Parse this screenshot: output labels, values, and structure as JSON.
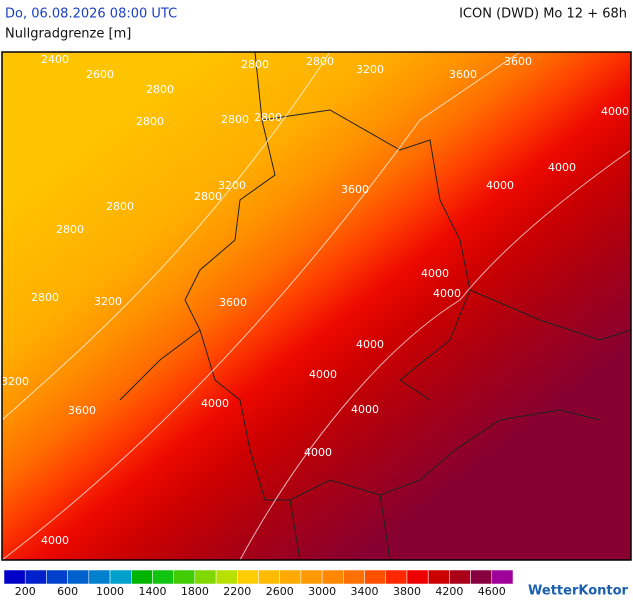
{
  "header": {
    "timestamp": "Do, 06.08.2026 08:00 UTC",
    "model": "ICON (DWD) Mo 12 + 68h",
    "title": "Nullgradgrenze [m]"
  },
  "contour_labels": [
    "2400",
    "2600",
    "2800",
    "2800",
    "2800",
    "2800",
    "3200",
    "3600",
    "3600",
    "4000",
    "4000",
    "2800",
    "2800",
    "3200",
    "2800",
    "2800",
    "3600",
    "4000",
    "2800",
    "4000",
    "4000",
    "2800",
    "3200",
    "3600",
    "4000",
    "3200",
    "4000",
    "3600",
    "4000",
    "4000",
    "4000",
    "4000"
  ],
  "colorbar": {
    "colors": [
      "#0000c8",
      "#0020cc",
      "#0040cc",
      "#0060cc",
      "#0080cc",
      "#00a0cc",
      "#00b400",
      "#10c410",
      "#40cc00",
      "#80d800",
      "#b8e000",
      "#ffcc00",
      "#ffbb00",
      "#ffaa00",
      "#ff9900",
      "#ff8800",
      "#ff7000",
      "#ff5000",
      "#ff2800",
      "#ee0000",
      "#cc0000",
      "#aa0018",
      "#880040",
      "#a0009a"
    ],
    "labels": [
      200,
      600,
      1000,
      1400,
      1800,
      2200,
      2600,
      3000,
      3400,
      3800,
      4200,
      4600
    ]
  },
  "logo": "WetterKontor"
}
